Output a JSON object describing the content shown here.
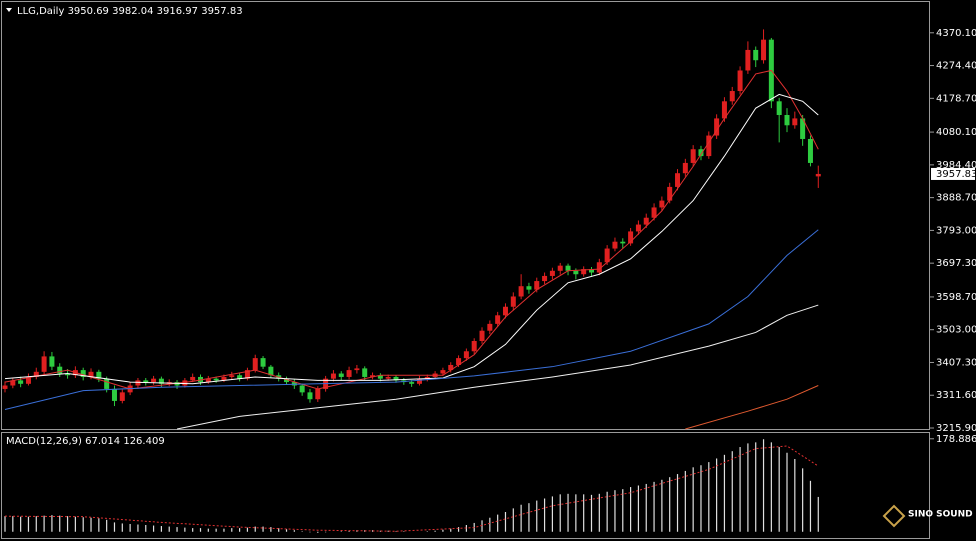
{
  "chart_data": [
    {
      "type": "candlestick",
      "title": "LLG,Daily",
      "up_color": "#e02020",
      "down_color": "#2ecc40",
      "candles": [
        [
          3330,
          3352,
          3320,
          3340
        ],
        [
          3340,
          3362,
          3332,
          3355
        ],
        [
          3355,
          3366,
          3335,
          3345
        ],
        [
          3345,
          3375,
          3340,
          3365
        ],
        [
          3365,
          3392,
          3358,
          3380
        ],
        [
          3380,
          3440,
          3372,
          3425
        ],
        [
          3425,
          3438,
          3385,
          3395
        ],
        [
          3395,
          3405,
          3365,
          3375
        ],
        [
          3375,
          3388,
          3360,
          3370
        ],
        [
          3370,
          3396,
          3362,
          3385
        ],
        [
          3385,
          3392,
          3355,
          3365
        ],
        [
          3365,
          3390,
          3358,
          3380
        ],
        [
          3380,
          3386,
          3350,
          3360
        ],
        [
          3360,
          3366,
          3320,
          3330
        ],
        [
          3330,
          3340,
          3280,
          3295
        ],
        [
          3295,
          3328,
          3288,
          3320
        ],
        [
          3320,
          3350,
          3312,
          3340
        ],
        [
          3340,
          3362,
          3330,
          3355
        ],
        [
          3355,
          3362,
          3340,
          3350
        ],
        [
          3350,
          3368,
          3342,
          3360
        ],
        [
          3360,
          3366,
          3335,
          3345
        ],
        [
          3345,
          3358,
          3338,
          3350
        ],
        [
          3350,
          3356,
          3330,
          3340
        ],
        [
          3340,
          3362,
          3334,
          3355
        ],
        [
          3355,
          3375,
          3350,
          3365
        ],
        [
          3365,
          3372,
          3342,
          3350
        ],
        [
          3350,
          3368,
          3345,
          3360
        ],
        [
          3360,
          3366,
          3348,
          3355
        ],
        [
          3355,
          3372,
          3350,
          3365
        ],
        [
          3365,
          3380,
          3358,
          3370
        ],
        [
          3370,
          3376,
          3352,
          3360
        ],
        [
          3360,
          3392,
          3355,
          3385
        ],
        [
          3385,
          3430,
          3378,
          3420
        ],
        [
          3420,
          3426,
          3388,
          3395
        ],
        [
          3395,
          3400,
          3362,
          3370
        ],
        [
          3370,
          3378,
          3352,
          3360
        ],
        [
          3360,
          3366,
          3342,
          3350
        ],
        [
          3350,
          3358,
          3330,
          3340
        ],
        [
          3340,
          3346,
          3310,
          3320
        ],
        [
          3320,
          3330,
          3290,
          3300
        ],
        [
          3300,
          3338,
          3292,
          3330
        ],
        [
          3330,
          3368,
          3322,
          3360
        ],
        [
          3360,
          3385,
          3352,
          3375
        ],
        [
          3375,
          3382,
          3356,
          3365
        ],
        [
          3365,
          3395,
          3358,
          3385
        ],
        [
          3385,
          3400,
          3375,
          3390
        ],
        [
          3390,
          3396,
          3355,
          3365
        ],
        [
          3365,
          3378,
          3358,
          3370
        ],
        [
          3370,
          3376,
          3352,
          3360
        ],
        [
          3360,
          3372,
          3354,
          3365
        ],
        [
          3365,
          3370,
          3348,
          3355
        ],
        [
          3355,
          3362,
          3342,
          3350
        ],
        [
          3350,
          3356,
          3336,
          3345
        ],
        [
          3345,
          3368,
          3340,
          3360
        ],
        [
          3360,
          3372,
          3352,
          3365
        ],
        [
          3365,
          3382,
          3358,
          3375
        ],
        [
          3375,
          3392,
          3368,
          3385
        ],
        [
          3385,
          3408,
          3378,
          3400
        ],
        [
          3400,
          3428,
          3394,
          3420
        ],
        [
          3420,
          3448,
          3412,
          3440
        ],
        [
          3440,
          3478,
          3432,
          3470
        ],
        [
          3470,
          3510,
          3462,
          3500
        ],
        [
          3500,
          3530,
          3490,
          3520
        ],
        [
          3520,
          3555,
          3512,
          3545
        ],
        [
          3545,
          3580,
          3536,
          3570
        ],
        [
          3570,
          3612,
          3560,
          3600
        ],
        [
          3600,
          3665,
          3592,
          3630
        ],
        [
          3630,
          3640,
          3608,
          3620
        ],
        [
          3620,
          3655,
          3612,
          3645
        ],
        [
          3645,
          3670,
          3636,
          3660
        ],
        [
          3660,
          3684,
          3650,
          3675
        ],
        [
          3675,
          3698,
          3664,
          3690
        ],
        [
          3690,
          3696,
          3662,
          3675
        ],
        [
          3675,
          3682,
          3650,
          3665
        ],
        [
          3665,
          3688,
          3658,
          3680
        ],
        [
          3680,
          3686,
          3660,
          3670
        ],
        [
          3670,
          3710,
          3662,
          3700
        ],
        [
          3700,
          3750,
          3692,
          3740
        ],
        [
          3740,
          3772,
          3732,
          3760
        ],
        [
          3760,
          3770,
          3740,
          3755
        ],
        [
          3755,
          3800,
          3748,
          3790
        ],
        [
          3790,
          3822,
          3780,
          3810
        ],
        [
          3810,
          3842,
          3800,
          3830
        ],
        [
          3830,
          3872,
          3822,
          3860
        ],
        [
          3860,
          3892,
          3850,
          3880
        ],
        [
          3880,
          3932,
          3872,
          3920
        ],
        [
          3920,
          3972,
          3910,
          3960
        ],
        [
          3960,
          4002,
          3950,
          3990
        ],
        [
          3990,
          4042,
          3980,
          4030
        ],
        [
          4030,
          4040,
          3998,
          4010
        ],
        [
          4010,
          4082,
          4002,
          4070
        ],
        [
          4070,
          4132,
          4060,
          4120
        ],
        [
          4120,
          4182,
          4110,
          4170
        ],
        [
          4170,
          4212,
          4160,
          4200
        ],
        [
          4200,
          4272,
          4190,
          4260
        ],
        [
          4260,
          4345,
          4250,
          4320
        ],
        [
          4320,
          4330,
          4270,
          4290
        ],
        [
          4290,
          4380,
          4280,
          4350
        ],
        [
          4350,
          4355,
          4150,
          4170
        ],
        [
          4170,
          4180,
          4050,
          4130
        ],
        [
          4130,
          4150,
          4080,
          4100
        ],
        [
          4100,
          4140,
          4090,
          4120
        ],
        [
          4120,
          4130,
          4040,
          4060
        ],
        [
          4060,
          4070,
          3980,
          3990
        ],
        [
          3950.69,
          3982.04,
          3916.97,
          3957.83
        ]
      ],
      "lines": [
        {
          "color": "#e03030",
          "x": [
            0,
            8,
            16,
            24,
            32,
            40,
            48,
            56,
            60,
            64,
            68,
            72,
            76,
            80,
            84,
            88,
            92,
            96,
            98,
            100,
            102,
            104
          ],
          "values": [
            3350,
            3385,
            3330,
            3352,
            3385,
            3330,
            3370,
            3370,
            3430,
            3540,
            3620,
            3675,
            3680,
            3760,
            3850,
            3980,
            4120,
            4250,
            4260,
            4200,
            4120,
            4030
          ]
        },
        {
          "color": "#ffffff",
          "x": [
            0,
            8,
            16,
            24,
            32,
            40,
            48,
            56,
            60,
            64,
            68,
            72,
            76,
            80,
            84,
            88,
            92,
            96,
            99,
            102,
            104
          ],
          "values": [
            3360,
            3375,
            3350,
            3345,
            3365,
            3355,
            3355,
            3362,
            3395,
            3460,
            3560,
            3640,
            3665,
            3710,
            3790,
            3880,
            4010,
            4150,
            4190,
            4170,
            4130
          ]
        },
        {
          "color": "#3a6fd8",
          "x": [
            0,
            10,
            20,
            30,
            40,
            50,
            60,
            70,
            80,
            90,
            95,
            100,
            104
          ],
          "values": [
            3270,
            3325,
            3335,
            3340,
            3345,
            3350,
            3368,
            3395,
            3440,
            3520,
            3600,
            3720,
            3795
          ]
        },
        {
          "color": "#f0f0f0",
          "x": [
            22,
            30,
            40,
            50,
            60,
            70,
            80,
            90,
            96,
            100,
            104
          ],
          "values": [
            3213,
            3250,
            3275,
            3300,
            3335,
            3365,
            3400,
            3455,
            3495,
            3545,
            3575
          ]
        },
        {
          "color": "#e05a30",
          "x": [
            87,
            95,
            100,
            104
          ],
          "values": [
            3213,
            3265,
            3300,
            3340
          ]
        }
      ],
      "ylim": [
        3213,
        4460
      ],
      "yticks": [
        {
          "value": 4370.1,
          "label": "4370.10"
        },
        {
          "value": 4274.4,
          "label": "4274.40"
        },
        {
          "value": 4178.7,
          "label": "4178.70"
        },
        {
          "value": 4080.1,
          "label": "4080.10"
        },
        {
          "value": 3984.4,
          "label": "3984.40"
        },
        {
          "value": 3888.7,
          "label": "3888.70"
        },
        {
          "value": 3793,
          "label": "3793.00"
        },
        {
          "value": 3697.3,
          "label": "3697.30"
        },
        {
          "value": 3598.7,
          "label": "3598.70"
        },
        {
          "value": 3503,
          "label": "3503.00"
        },
        {
          "value": 3407.3,
          "label": "3407.30"
        },
        {
          "value": 3311.6,
          "label": "3311.60"
        },
        {
          "value": 3215.9,
          "label": "3215.90"
        }
      ]
    },
    {
      "type": "macd",
      "title": "MACD(12,26,9)",
      "color": "#e0e0e0",
      "signal_color": "#e03030",
      "values": [
        30,
        30,
        29,
        29,
        30,
        31,
        32,
        31,
        30,
        29,
        28,
        27,
        26,
        23,
        18,
        16,
        15,
        14,
        13,
        12,
        11,
        10,
        9,
        8,
        7,
        7,
        6,
        6,
        6,
        7,
        7,
        8,
        10,
        10,
        9,
        7,
        5,
        3,
        1,
        -1,
        -2,
        -1,
        0,
        1,
        2,
        3,
        3,
        3,
        2,
        2,
        1,
        1,
        0,
        0,
        1,
        2,
        4,
        6,
        9,
        13,
        17,
        22,
        27,
        33,
        38,
        45,
        52,
        55,
        60,
        64,
        68,
        72,
        73,
        72,
        72,
        71,
        73,
        77,
        80,
        82,
        86,
        89,
        92,
        96,
        100,
        105,
        111,
        117,
        124,
        128,
        134,
        141,
        148,
        155,
        163,
        170,
        172,
        178,
        172,
        163,
        152,
        140,
        122,
        98,
        67.014
      ],
      "signal": {
        "x": [
          0,
          10,
          20,
          30,
          40,
          50,
          60,
          70,
          80,
          90,
          96,
          100,
          104
        ],
        "values": [
          30,
          29,
          18,
          9,
          3,
          1,
          8,
          50,
          75,
          120,
          160,
          165,
          126.409
        ]
      },
      "ylim": [
        -12,
        190
      ],
      "yticks": [
        178.886
      ],
      "watermark": "SINO SOUND"
    }
  ]
}
